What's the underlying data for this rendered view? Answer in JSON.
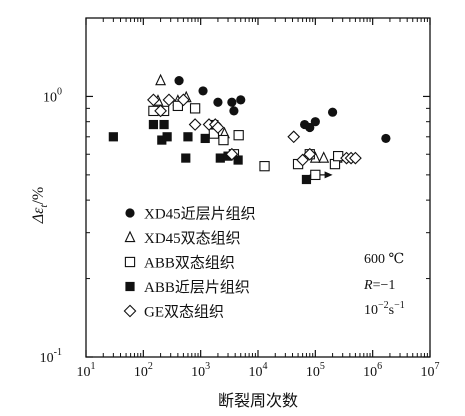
{
  "chart_data": {
    "type": "scatter",
    "title": "",
    "xlabel": "断裂周次数",
    "ylabel_main": "Δε",
    "ylabel_sub": "t",
    "ylabel_unit": "/%",
    "x_scale": "log",
    "y_scale": "log",
    "xlim": [
      10,
      10000000
    ],
    "ylim": [
      0.1,
      2
    ],
    "grid": false,
    "legend_position": "bottom-left",
    "x_ticks": [
      {
        "value": 10,
        "base": "10",
        "exp": "1"
      },
      {
        "value": 100,
        "base": "10",
        "exp": "2"
      },
      {
        "value": 1000,
        "base": "10",
        "exp": "3"
      },
      {
        "value": 10000,
        "base": "10",
        "exp": "4"
      },
      {
        "value": 100000,
        "base": "10",
        "exp": "5"
      },
      {
        "value": 1000000,
        "base": "10",
        "exp": "6"
      },
      {
        "value": 10000000,
        "base": "10",
        "exp": "7"
      }
    ],
    "y_ticks": [
      {
        "value": 0.1,
        "base": "10",
        "exp": "-1"
      },
      {
        "value": 1,
        "base": "10",
        "exp": "0"
      }
    ],
    "conditions": {
      "temperature": "600 ℃",
      "ratio_symbol": "R",
      "ratio_value": "=−1",
      "rate_base": "10",
      "rate_exp": "−2",
      "rate_unit": "s",
      "rate_unit_exp": "−1"
    },
    "runout_arrow": {
      "from": 80000,
      "to": 200000,
      "y": 0.5
    },
    "series": [
      {
        "name": "XD45近层片组织",
        "marker": "filled-circle",
        "points": [
          [
            420,
            1.15
          ],
          [
            1100,
            1.05
          ],
          [
            2000,
            0.95
          ],
          [
            3500,
            0.95
          ],
          [
            5000,
            0.97
          ],
          [
            3800,
            0.88
          ],
          [
            65000,
            0.78
          ],
          [
            80000,
            0.76
          ],
          [
            100000,
            0.8
          ],
          [
            200000,
            0.87
          ],
          [
            1700000,
            0.69
          ]
        ]
      },
      {
        "name": "XD45双态组织",
        "marker": "open-triangle",
        "points": [
          [
            200,
            1.15
          ],
          [
            180,
            0.96
          ],
          [
            400,
            0.96
          ],
          [
            560,
            0.99
          ],
          [
            2600,
            0.72
          ],
          [
            100000,
            0.58
          ],
          [
            140000,
            0.58
          ],
          [
            240000,
            0.58
          ]
        ]
      },
      {
        "name": "ABB双态组织",
        "marker": "open-square",
        "points": [
          [
            150,
            0.88
          ],
          [
            230,
            0.88
          ],
          [
            400,
            0.92
          ],
          [
            800,
            0.9
          ],
          [
            1700,
            0.72
          ],
          [
            2500,
            0.68
          ],
          [
            4600,
            0.71
          ],
          [
            3800,
            0.6
          ],
          [
            13000,
            0.54
          ],
          [
            50000,
            0.55
          ],
          [
            80000,
            0.6
          ],
          [
            100000,
            0.5
          ],
          [
            220000,
            0.55
          ],
          [
            250000,
            0.59
          ]
        ]
      },
      {
        "name": "ABB近层片组织",
        "marker": "filled-square",
        "points": [
          [
            30,
            0.7
          ],
          [
            150,
            0.78
          ],
          [
            230,
            0.78
          ],
          [
            210,
            0.68
          ],
          [
            260,
            0.7
          ],
          [
            550,
            0.58
          ],
          [
            600,
            0.7
          ],
          [
            1200,
            0.69
          ],
          [
            1700,
            0.78
          ],
          [
            2200,
            0.58
          ],
          [
            3000,
            0.59
          ],
          [
            4500,
            0.57
          ],
          [
            70000,
            0.48
          ]
        ]
      },
      {
        "name": "GE双态组织",
        "marker": "open-diamond",
        "points": [
          [
            150,
            0.97
          ],
          [
            280,
            0.97
          ],
          [
            200,
            0.88
          ],
          [
            500,
            0.97
          ],
          [
            800,
            0.78
          ],
          [
            1400,
            0.78
          ],
          [
            1800,
            0.78
          ],
          [
            2000,
            0.76
          ],
          [
            3500,
            0.6
          ],
          [
            42000,
            0.7
          ],
          [
            60000,
            0.57
          ],
          [
            80000,
            0.6
          ],
          [
            350000,
            0.58
          ],
          [
            420000,
            0.58
          ],
          [
            500000,
            0.58
          ]
        ]
      }
    ]
  }
}
